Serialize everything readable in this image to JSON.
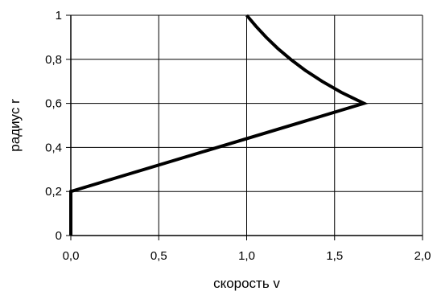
{
  "chart_data": {
    "type": "line",
    "xlabel": "скорость  v",
    "ylabel": "радиус  r",
    "xlim": [
      0,
      2
    ],
    "ylim": [
      0,
      1
    ],
    "grid": true,
    "x_ticks": [
      0,
      0.5,
      1,
      1.5,
      2
    ],
    "y_ticks": [
      0,
      0.2,
      0.4,
      0.6,
      0.8,
      1
    ],
    "x_tick_labels": [
      "0,0",
      "0,5",
      "1,0",
      "1,5",
      "2,0"
    ],
    "y_tick_labels": [
      "0",
      "0,2",
      "0,4",
      "0,6",
      "0,8",
      "1"
    ],
    "series": [
      {
        "color": "#000000",
        "points": [
          {
            "x": 0,
            "y": 0
          },
          {
            "x": 0,
            "y": 0.2
          },
          {
            "x": 1.667,
            "y": 0.6
          },
          {
            "x": 1.538,
            "y": 0.65
          },
          {
            "x": 1.429,
            "y": 0.7
          },
          {
            "x": 1.333,
            "y": 0.75
          },
          {
            "x": 1.25,
            "y": 0.8
          },
          {
            "x": 1.176,
            "y": 0.85
          },
          {
            "x": 1.111,
            "y": 0.9
          },
          {
            "x": 1.053,
            "y": 0.95
          },
          {
            "x": 1.0,
            "y": 1.0
          }
        ]
      }
    ]
  }
}
